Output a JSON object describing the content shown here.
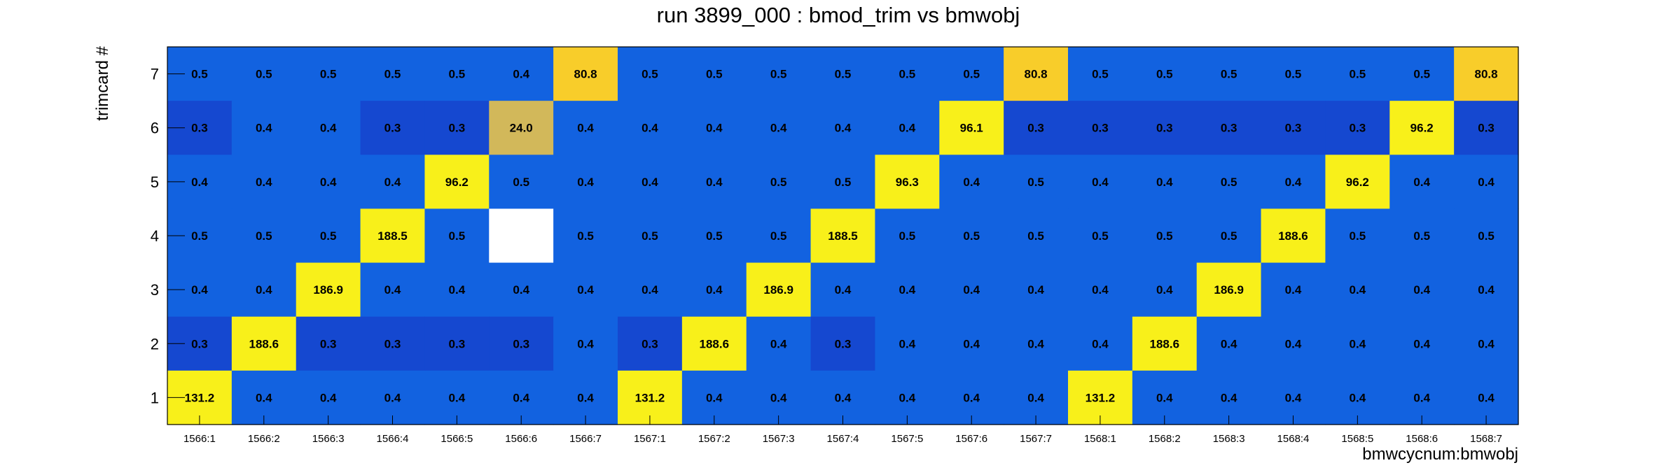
{
  "chart_data": {
    "type": "heatmap",
    "title": "run 3899_000 : bmod_trim vs bmwobj",
    "xlabel": "bmwcycnum:bmwobj",
    "ylabel": "trimcard #",
    "x_categories": [
      "1566:1",
      "1566:2",
      "1566:3",
      "1566:4",
      "1566:5",
      "1566:6",
      "1566:7",
      "1567:1",
      "1567:2",
      "1567:3",
      "1567:4",
      "1567:5",
      "1567:6",
      "1567:7",
      "1568:1",
      "1568:2",
      "1568:3",
      "1568:4",
      "1568:5",
      "1568:6",
      "1568:7"
    ],
    "y_categories": [
      "1",
      "2",
      "3",
      "4",
      "5",
      "6",
      "7"
    ],
    "rows": [
      {
        "y": "7",
        "values": [
          0.5,
          0.5,
          0.5,
          0.5,
          0.5,
          0.4,
          80.8,
          0.5,
          0.5,
          0.5,
          0.5,
          0.5,
          0.5,
          80.8,
          0.5,
          0.5,
          0.5,
          0.5,
          0.5,
          0.5,
          80.8
        ]
      },
      {
        "y": "6",
        "values": [
          0.3,
          0.4,
          0.4,
          0.3,
          0.3,
          24.0,
          0.4,
          0.4,
          0.4,
          0.4,
          0.4,
          0.4,
          96.1,
          0.3,
          0.3,
          0.3,
          0.3,
          0.3,
          0.3,
          96.2,
          0.3
        ]
      },
      {
        "y": "5",
        "values": [
          0.4,
          0.4,
          0.4,
          0.4,
          96.2,
          0.5,
          0.4,
          0.4,
          0.4,
          0.5,
          0.5,
          96.3,
          0.4,
          0.5,
          0.4,
          0.4,
          0.5,
          0.4,
          96.2,
          0.4,
          0.4
        ]
      },
      {
        "y": "4",
        "values": [
          0.5,
          0.5,
          0.5,
          188.5,
          0.5,
          null,
          0.5,
          0.5,
          0.5,
          0.5,
          188.5,
          0.5,
          0.5,
          0.5,
          0.5,
          0.5,
          0.5,
          188.6,
          0.5,
          0.5,
          0.5
        ]
      },
      {
        "y": "3",
        "values": [
          0.4,
          0.4,
          186.9,
          0.4,
          0.4,
          0.4,
          0.4,
          0.4,
          0.4,
          186.9,
          0.4,
          0.4,
          0.4,
          0.4,
          0.4,
          0.4,
          186.9,
          0.4,
          0.4,
          0.4,
          0.4
        ]
      },
      {
        "y": "2",
        "values": [
          0.3,
          188.6,
          0.3,
          0.3,
          0.3,
          0.3,
          0.4,
          0.3,
          188.6,
          0.4,
          0.3,
          0.4,
          0.4,
          0.4,
          0.4,
          188.6,
          0.4,
          0.4,
          0.4,
          0.4,
          0.4
        ]
      },
      {
        "y": "1",
        "values": [
          131.2,
          0.4,
          0.4,
          0.4,
          0.4,
          0.4,
          0.4,
          131.2,
          0.4,
          0.4,
          0.4,
          0.4,
          0.4,
          0.4,
          131.2,
          0.4,
          0.4,
          0.4,
          0.4,
          0.4,
          0.4
        ]
      }
    ],
    "colors": {
      "low_dark": "#1548d0",
      "low": "#1262e0",
      "mid": "#d2b85a",
      "high_warm": "#f8cd2a",
      "high": "#f8f01a",
      "empty": "#ffffff"
    },
    "grid": false,
    "legend": "none"
  }
}
